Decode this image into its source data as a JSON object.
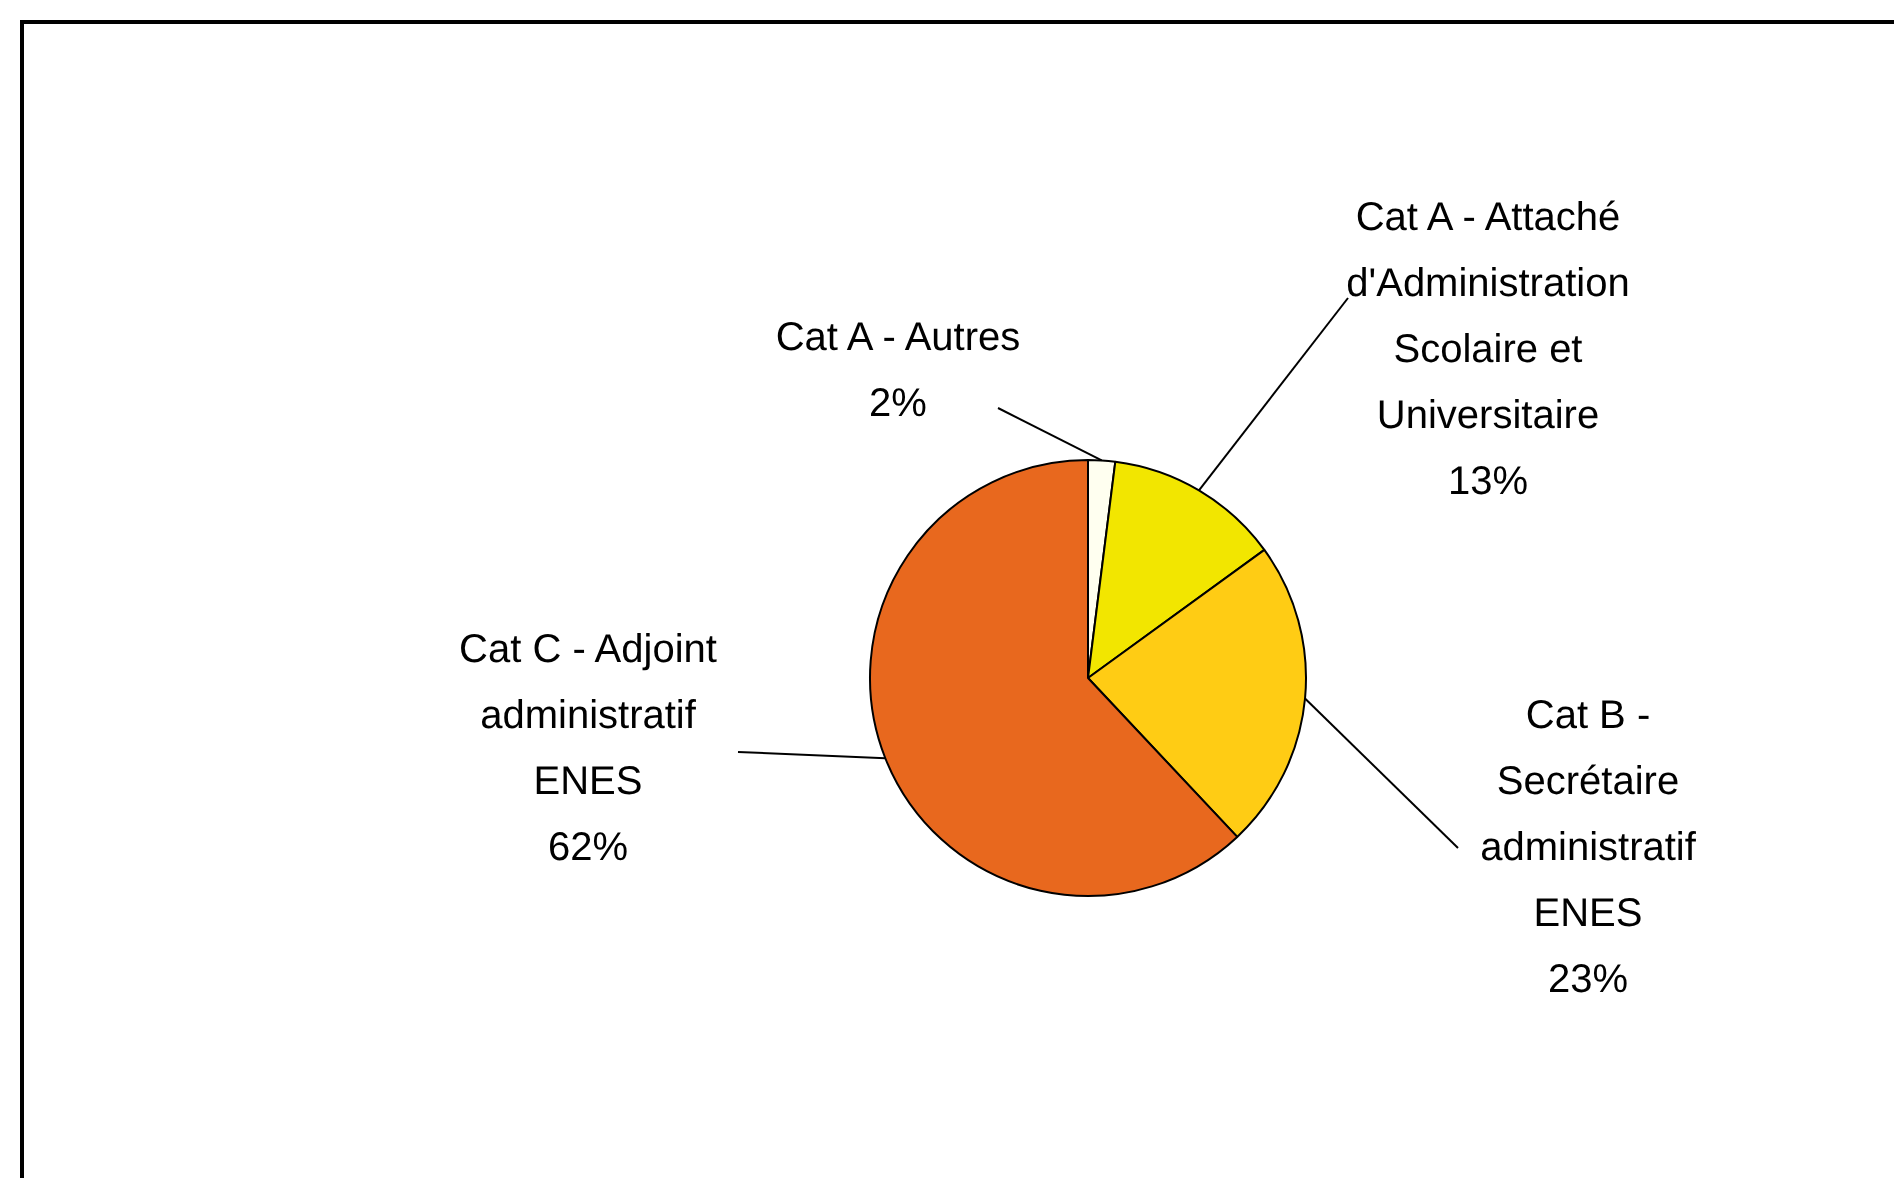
{
  "chart_data": {
    "type": "pie",
    "categories": [
      "Cat A - Autres",
      "Cat A - Attaché d'Administration Scolaire et Universitaire",
      "Cat B - Secrétaire administratif ENES",
      "Cat C - Adjoint administratif ENES"
    ],
    "values": [
      2,
      13,
      23,
      62
    ],
    "value_labels": [
      "2%",
      "13%",
      "23%",
      "62%"
    ],
    "colors": [
      "#fffff0",
      "#f2e600",
      "#ffcc14",
      "#e8681e"
    ],
    "legend": false
  }
}
